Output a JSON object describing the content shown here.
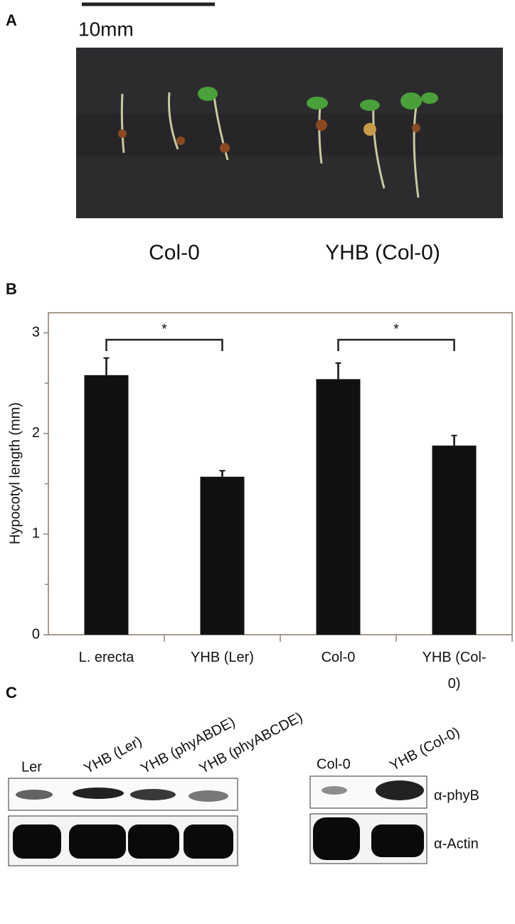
{
  "panel_a": {
    "label": "A",
    "scale_bar": "10mm",
    "captions": [
      "Col-0",
      "YHB (Col-0)"
    ]
  },
  "chart_data": {
    "type": "bar",
    "panel_label": "B",
    "ylabel": "Hypocotyl length (mm)",
    "categories": [
      "L. erecta",
      "YHB (Ler)",
      "Col-0",
      "YHB (Col-0)"
    ],
    "values": [
      2.58,
      1.57,
      2.54,
      1.88
    ],
    "errors": [
      0.17,
      0.06,
      0.16,
      0.1
    ],
    "color": "#111111",
    "ylim": [
      0,
      3.2
    ],
    "yticks": [
      0,
      1,
      2,
      3
    ],
    "minor_yticks": [
      0.5,
      1.5,
      2.5
    ],
    "significance": [
      {
        "from": 0,
        "to": 1,
        "label": "*"
      },
      {
        "from": 2,
        "to": 3,
        "label": "*"
      }
    ]
  },
  "panel_c": {
    "label": "C",
    "left_lanes": [
      "Ler",
      "YHB (Ler)",
      "YHB (phyABDE)",
      "YHB (phyABCDE)"
    ],
    "right_lanes": [
      "Col-0",
      "YHB (Col-0)"
    ],
    "rows": [
      "α-phyB",
      "α-Actin"
    ]
  }
}
